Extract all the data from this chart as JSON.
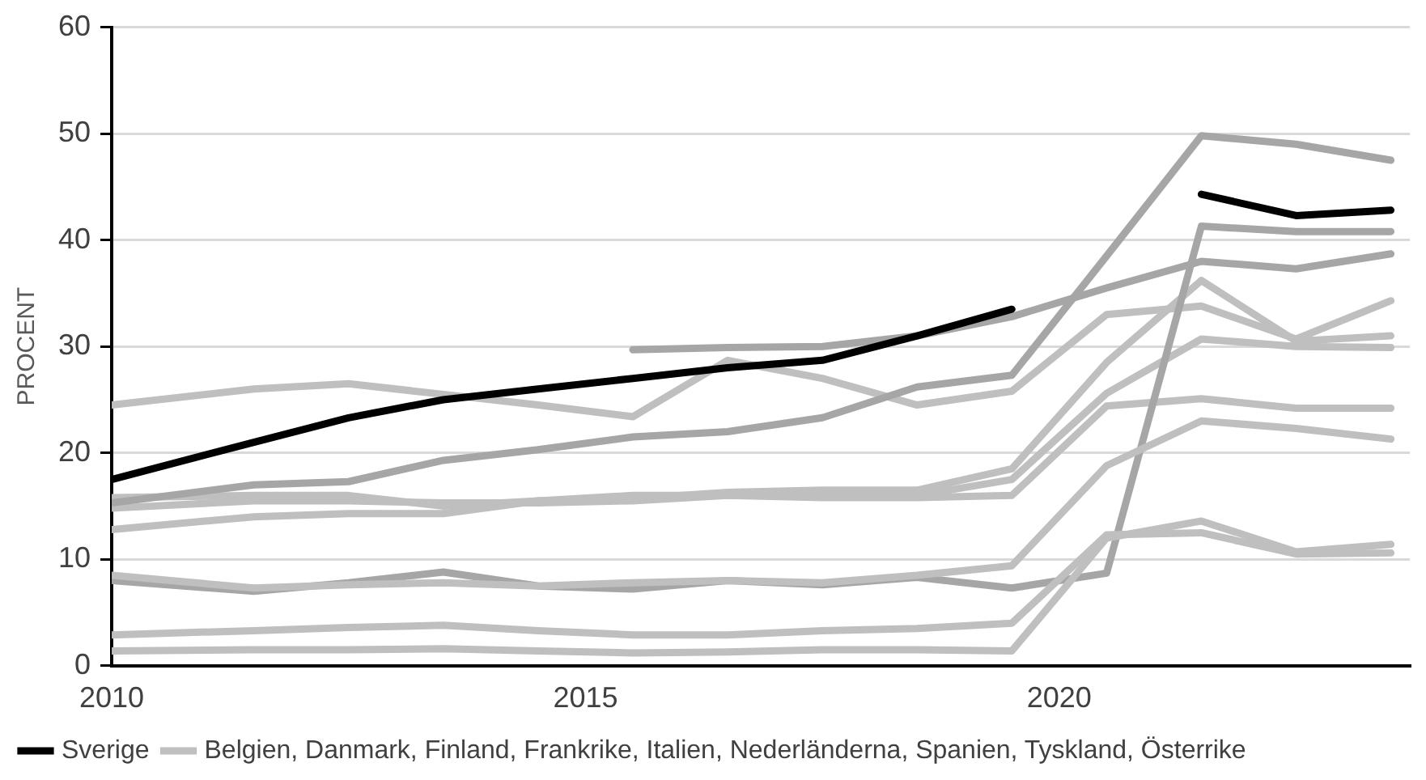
{
  "chart_data": {
    "type": "line",
    "ylabel": "PROCENT",
    "x": [
      2010,
      2011.5,
      2012.5,
      2013.5,
      2014.5,
      2015.5,
      2016.5,
      2017.5,
      2018.5,
      2019.5,
      2020.5,
      2021.5,
      2022.5,
      2023.5
    ],
    "series": [
      {
        "name": "Belgien, Danmark, Finland, Frankrike, Italien, Nederländerna, Spanien, Tyskland, Österrike",
        "color": "#bfbfbf",
        "values": [
          24.5,
          26,
          26.5,
          25.5,
          24.5,
          23.4,
          28.7,
          27,
          24.5,
          25.8,
          33,
          33.8,
          30.7,
          34.3
        ]
      },
      {
        "color": "#bfbfbf",
        "values": [
          15.8,
          16,
          16,
          15,
          15.5,
          15.7,
          16.3,
          16.5,
          16.5,
          18.5,
          28.5,
          36.2,
          30.5,
          31
        ]
      },
      {
        "color": "#bfbfbf",
        "values": [
          14.8,
          15.5,
          15.5,
          15.3,
          15.3,
          15.5,
          16,
          16,
          16,
          17.5,
          25.6,
          30.7,
          30,
          29.9
        ]
      },
      {
        "color": "#bfbfbf",
        "values": [
          12.8,
          14,
          14.3,
          14.3,
          15.5,
          16,
          16,
          15.8,
          15.8,
          16,
          24.4,
          25.1,
          24.2,
          24.2
        ]
      },
      {
        "color": "#a6a6a6",
        "values": [
          15.3,
          17,
          17.3,
          19.3,
          20.3,
          21.5,
          22,
          23.3,
          26.2,
          27.3,
          38.5,
          49.8,
          49,
          47.5
        ]
      },
      {
        "color": "#a6a6a6",
        "values": [
          null,
          null,
          null,
          null,
          null,
          29.7,
          29.9,
          30,
          31,
          32.8,
          35.5,
          38,
          37.3,
          38.7
        ]
      },
      {
        "color": "#a6a6a6",
        "values": [
          8,
          7,
          7.8,
          8.8,
          7.5,
          7.2,
          8,
          7.6,
          8.3,
          7.3,
          8.7,
          41.3,
          40.8,
          40.8
        ]
      },
      {
        "color": "#bfbfbf",
        "values": [
          8.5,
          7.3,
          7.6,
          7.8,
          7.5,
          7.8,
          8,
          7.8,
          8.5,
          9.4,
          18.8,
          23,
          22.3,
          21.3
        ]
      },
      {
        "color": "#bfbfbf",
        "values": [
          2.9,
          3.3,
          3.6,
          3.8,
          3.3,
          2.9,
          2.9,
          3.3,
          3.5,
          4,
          12.3,
          12.5,
          10.5,
          10.6
        ]
      },
      {
        "color": "#bfbfbf",
        "values": [
          1.4,
          1.5,
          1.5,
          1.6,
          1.4,
          1.2,
          1.3,
          1.5,
          1.5,
          1.4,
          12,
          13.6,
          10.7,
          11.4
        ]
      },
      {
        "name": "Sverige",
        "color": "#000000",
        "values": [
          17.5,
          21,
          23.3,
          25,
          26,
          27,
          28,
          28.7,
          31,
          33.5,
          null,
          44.3,
          42.3,
          42.8
        ]
      }
    ],
    "xlim": [
      2010,
      2023.7
    ],
    "xticks": [
      2010,
      2015,
      2020
    ],
    "ylim": [
      0,
      60
    ],
    "yticks": [
      0,
      10,
      20,
      30,
      40,
      50,
      60
    ],
    "grid": "y",
    "legend": "bottom left",
    "marker": "none",
    "line_style": "solid"
  }
}
